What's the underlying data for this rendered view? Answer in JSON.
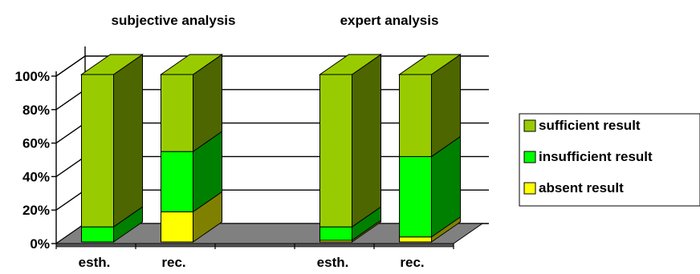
{
  "chart_data": {
    "type": "bar",
    "stacked": true,
    "percent_stacked": true,
    "three_d": true,
    "group_titles": [
      "subjective analysis",
      "expert analysis"
    ],
    "categories": [
      "esth.",
      "rec.",
      "",
      "esth.",
      "rec."
    ],
    "yticks": [
      "0%",
      "20%",
      "40%",
      "60%",
      "80%",
      "100%"
    ],
    "ylim": [
      0,
      100
    ],
    "grid": true,
    "legend_position": "right",
    "series": [
      {
        "name": "absent result",
        "values": [
          0,
          18,
          0,
          1,
          3
        ],
        "color": "#ffff00",
        "side_color": "#808000"
      },
      {
        "name": "insufficient result",
        "values": [
          9,
          36,
          0,
          8,
          48
        ],
        "color": "#00ff00",
        "side_color": "#008000"
      },
      {
        "name": "sufficient result",
        "values": [
          91,
          46,
          0,
          91,
          49
        ],
        "color": "#99cc00",
        "side_color": "#4d6600"
      }
    ],
    "legend_order": [
      "sufficient result",
      "insufficient result",
      "absent result"
    ],
    "colors": {
      "floor_top": "#808080",
      "floor_front": "#a0a0a0",
      "wall": "#ffffff",
      "grid": "#000000"
    }
  }
}
